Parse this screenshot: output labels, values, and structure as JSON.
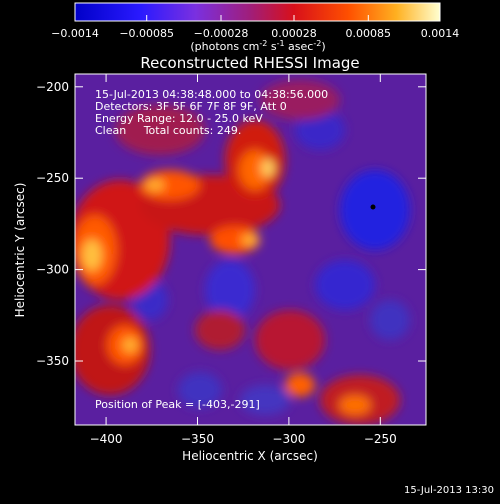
{
  "colorbar": {
    "ticks": [
      "-0.0014",
      "-0.00085",
      "-0.00028",
      "0.00028",
      "0.00085",
      "0.0014"
    ],
    "units_label": "(photons cm-2 s-1 asec-2)",
    "units": {
      "base": "(photons cm",
      "e1": "-2",
      "mid1": " s",
      "e2": "-1",
      "mid2": " asec",
      "e3": "-2",
      "end": ")"
    }
  },
  "chart_data": {
    "type": "heatmap",
    "title": "Reconstructed RHESSI Image",
    "xlabel": "Heliocentric X (arcsec)",
    "ylabel": "Heliocentric Y (arcsec)",
    "xlim": [
      -417,
      -225
    ],
    "ylim": [
      -385,
      -193
    ],
    "xticks": [
      -400,
      -350,
      -300,
      -250
    ],
    "yticks": [
      -200,
      -250,
      -300,
      -350
    ],
    "colorbar_range": [
      -0.0014,
      0.0014
    ],
    "peak_position": [
      -403,
      -291
    ],
    "annotations": {
      "time": "15-Jul-2013 04:38:48.000 to 04:38:56.000",
      "detectors": "Detectors: 3F 5F 6F 7F 8F 9F, Att 0",
      "energy": "Energy Range: 12.0 - 25.0 keV",
      "clean": "Clean     Total counts: 249.",
      "peak": "Position of Peak = [-403,-291]"
    }
  },
  "footer": {
    "timestamp": "15-Jul-2013 13:30"
  }
}
